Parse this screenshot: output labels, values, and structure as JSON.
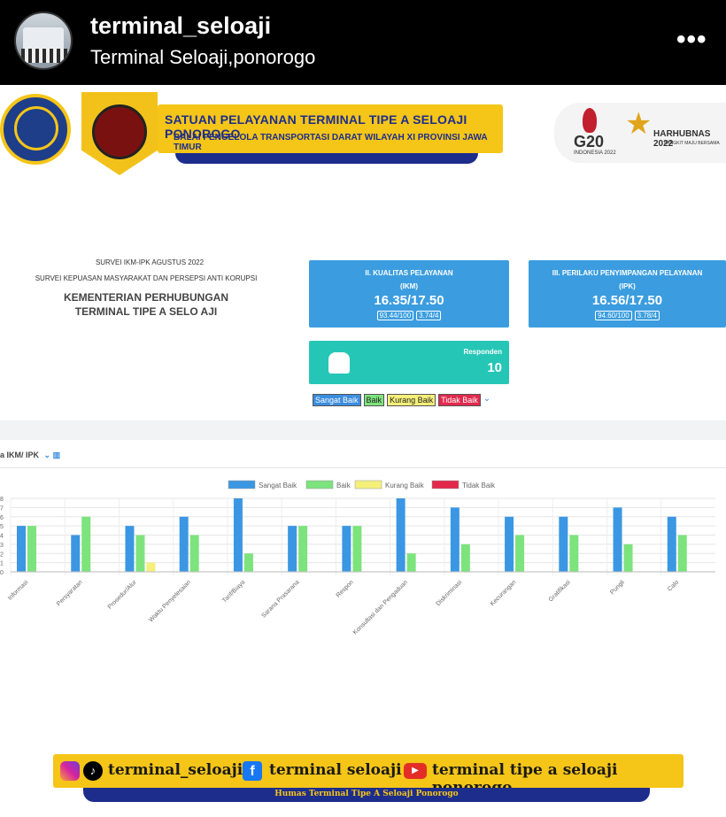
{
  "instagram": {
    "username": "terminal_seloaji",
    "location": "Terminal Seloaji,ponorogo",
    "more_label": "•••"
  },
  "banner": {
    "title": "SATUAN PELAYANAN TERMINAL TIPE A SELOAJI PONOROGO",
    "subtitle": "BALAI PENGELOLA TRANSPORTASI DARAT WILAYAH XI PROVINSI JAWA TIMUR",
    "g20_label": "G20",
    "g20_sub": "INDONESIA 2022",
    "harhubnas_label": "HARHUBNAS 2022",
    "harhubnas_sub": "BANGKIT MAJU BERSAMA"
  },
  "survey": {
    "line1": "SURVEI IKM-IPK AGUSTUS 2022",
    "line2": "SURVEI KEPUASAN MASYARAKAT DAN PERSEPSI ANTI KORUPSI",
    "line3": "KEMENTERIAN PERHUBUNGAN",
    "line4": "TERMINAL TIPE A SELO AJI"
  },
  "cards": {
    "ikm": {
      "label": "II. KUALITAS PELAYANAN",
      "sub": "(IKM)",
      "score": "16.35/17.50",
      "chip1": "93.44/100",
      "chip2": "3.74/4"
    },
    "ipk": {
      "label": "III. PERILAKU PENYIMPANGAN PELAYANAN",
      "sub": "(IPK)",
      "score": "16.56/17.50",
      "chip1": "94.60/100",
      "chip2": "3.78/4"
    },
    "responden": {
      "label": "Responden",
      "value": "10"
    }
  },
  "legend_chips": {
    "sangat_baik": "Sangat Baik",
    "baik": "Baik",
    "kurang_baik": "Kurang Baik",
    "tidak_baik": "Tidak Baik",
    "chevron": "⌄"
  },
  "chart_panel": {
    "title": "a IKM/ IPK",
    "icons": "⌄ ▥"
  },
  "colors": {
    "sangat_baik": "#3b97e3",
    "baik": "#7de37d",
    "kurang_baik": "#f5f07a",
    "tidak_baik": "#e2294d"
  },
  "chart_data": {
    "type": "bar",
    "categories": [
      "Informasi",
      "Persyaratan",
      "Prosedur/Alur",
      "Waktu Penyelesaian",
      "Tarif/Biaya",
      "Sarana Prasarana",
      "Respon",
      "Konsultasi dan Pengaduan",
      "Diskriminasi",
      "Kecurangan",
      "Gratifikasi",
      "Pungli",
      "Calo"
    ],
    "series": [
      {
        "name": "Sangat Baik",
        "values": [
          5,
          4,
          5,
          6,
          8,
          5,
          5,
          8,
          7,
          6,
          6,
          7,
          6
        ]
      },
      {
        "name": "Baik",
        "values": [
          5,
          6,
          4,
          4,
          2,
          5,
          5,
          2,
          3,
          4,
          4,
          3,
          4
        ]
      },
      {
        "name": "Kurang Baik",
        "values": [
          0,
          0,
          1,
          0,
          0,
          0,
          0,
          0,
          0,
          0,
          0,
          0,
          0
        ]
      },
      {
        "name": "Tidak Baik",
        "values": [
          0,
          0,
          0,
          0,
          0,
          0,
          0,
          0,
          0,
          0,
          0,
          0,
          0
        ]
      }
    ],
    "ylim": [
      0,
      8
    ],
    "yticks": [
      "0",
      "1",
      "2",
      "3",
      "4",
      "5",
      "6",
      "7",
      "8"
    ],
    "legend": "top-center",
    "grid": true
  },
  "footer": {
    "instagram": "terminal_seloaji",
    "facebook": "terminal seloaji",
    "youtube": "terminal tipe a seloaji ponorogo",
    "tagline": "Humas Terminal Tipe A Seloaji Ponorogo"
  }
}
